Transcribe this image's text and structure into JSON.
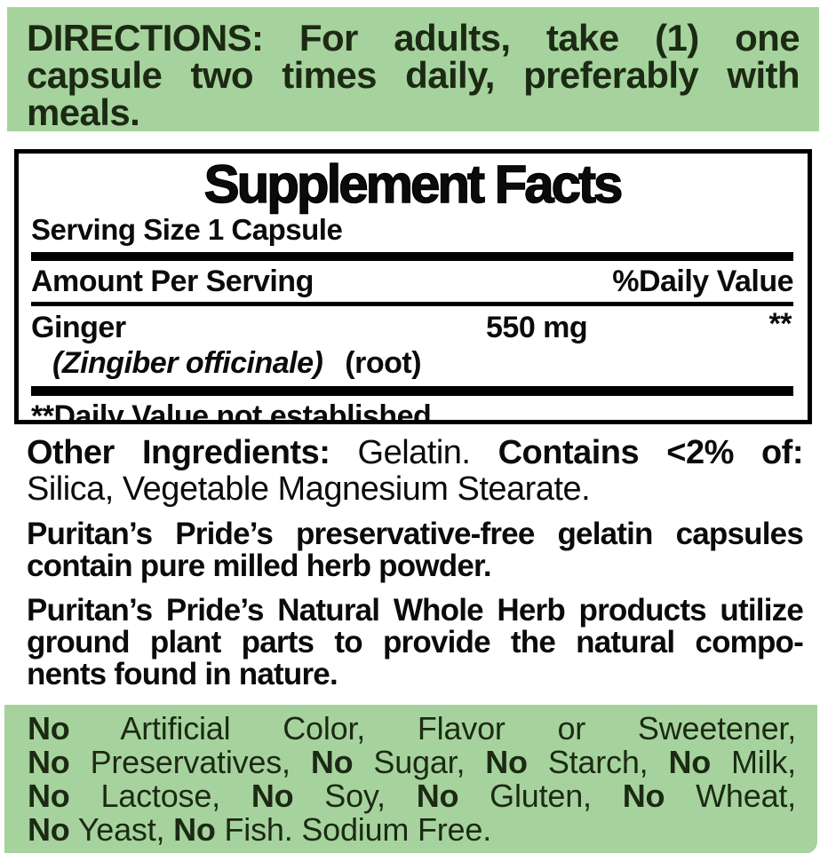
{
  "colors": {
    "banner_green": "#a6d39d",
    "strip_green": "#337040",
    "banner_text": "#1c2a14",
    "ink": "#0b0b0b"
  },
  "directions": {
    "lines": [
      "DIRECTIONS: For adults, take (1) one",
      "capsule two times daily, preferably with",
      "meals."
    ]
  },
  "supplement_facts": {
    "title": "Supplement Facts",
    "serving_size": "Serving Size 1 Capsule",
    "amount_header": "Amount Per Serving",
    "dv_header": "%Daily Value",
    "ingredient": {
      "name": "Ginger",
      "amount": "550 mg",
      "daily_value": "**",
      "botanical": "(Zingiber officinale)",
      "part": "(root)"
    },
    "footnote": "**Daily Value not established."
  },
  "other_ingredients": {
    "lines": [
      [
        {
          "t": "Other Ingredients:",
          "b": true
        },
        {
          "t": " Gelatin. "
        },
        {
          "t": "Contains <2% of:",
          "b": true
        }
      ],
      [
        {
          "t": "Silica, Vegetable Magnesium Stearate."
        }
      ]
    ]
  },
  "capsule_note": {
    "lines": [
      "Puritan’s Pride’s preservative-free gelatin capsules",
      "contain pure milled herb powder."
    ]
  },
  "whole_herb_note": {
    "lines": [
      "Puritan’s Pride’s Natural Whole Herb products utilize",
      "ground plant parts to provide the natural compo-",
      "nents found in nature."
    ]
  },
  "no_claims": {
    "lines": [
      [
        {
          "t": "No",
          "b": true
        },
        {
          "t": " Artificial Color, Flavor or Sweetener,"
        }
      ],
      [
        {
          "t": "No",
          "b": true
        },
        {
          "t": " Preservatives, "
        },
        {
          "t": "No",
          "b": true
        },
        {
          "t": " Sugar, "
        },
        {
          "t": "No",
          "b": true
        },
        {
          "t": " Starch, "
        },
        {
          "t": "No",
          "b": true
        },
        {
          "t": " Milk,"
        }
      ],
      [
        {
          "t": "No",
          "b": true
        },
        {
          "t": " Lactose, "
        },
        {
          "t": "No",
          "b": true
        },
        {
          "t": " Soy, "
        },
        {
          "t": "No",
          "b": true
        },
        {
          "t": " Gluten, "
        },
        {
          "t": "No",
          "b": true
        },
        {
          "t": " Wheat,"
        }
      ],
      [
        {
          "t": "No",
          "b": true
        },
        {
          "t": " Yeast, "
        },
        {
          "t": "No",
          "b": true
        },
        {
          "t": " Fish. Sodium Free."
        }
      ]
    ]
  }
}
